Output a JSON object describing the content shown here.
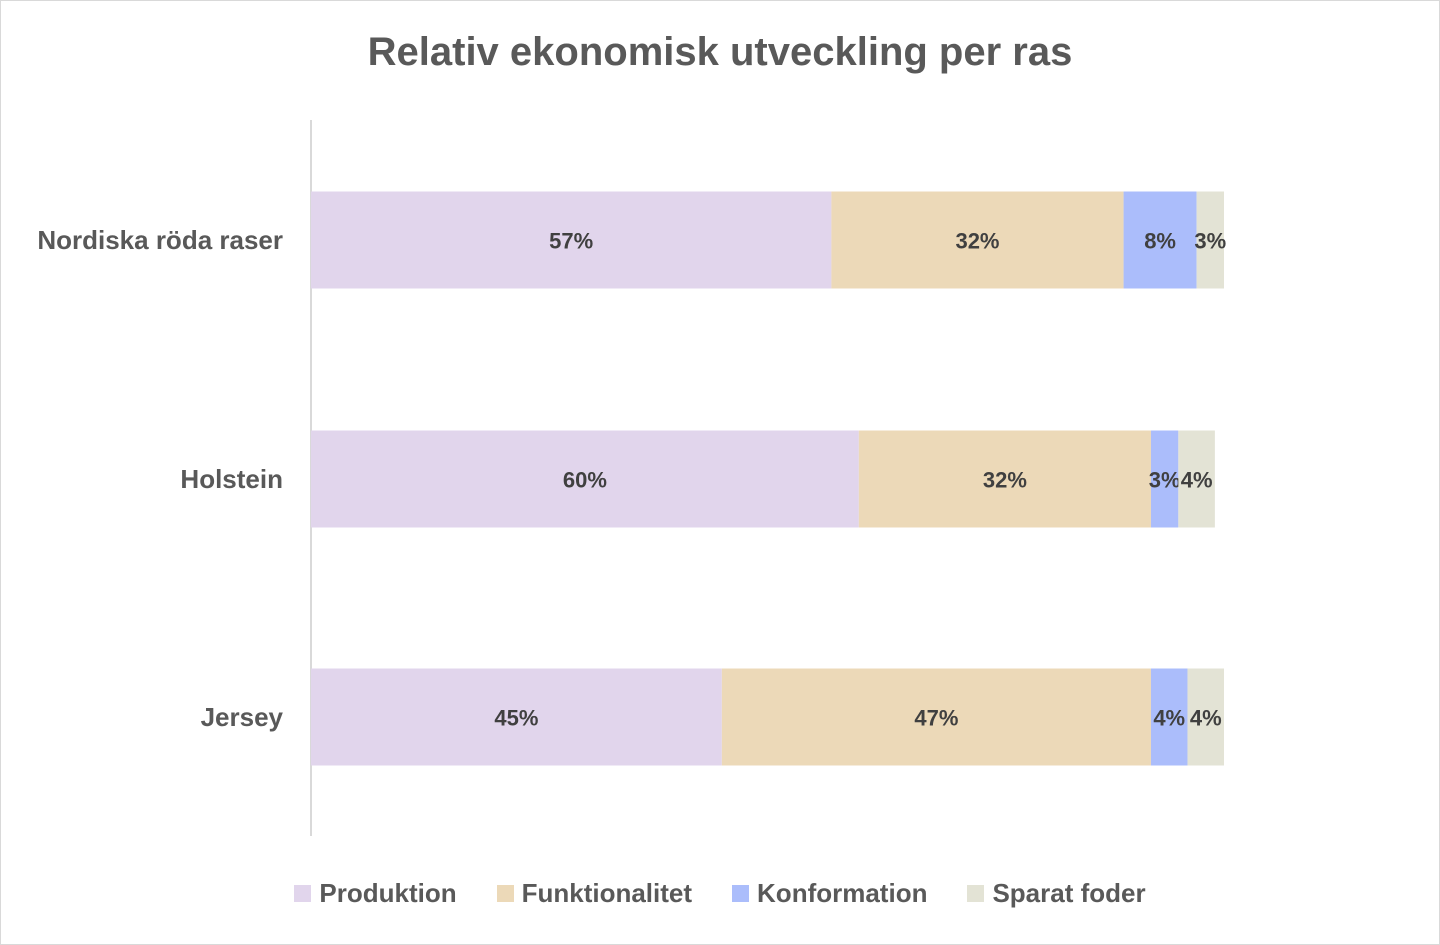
{
  "chart_data": {
    "type": "bar",
    "orientation": "horizontal",
    "stacked": true,
    "title": "Relativ ekonomisk utveckling per ras",
    "categories": [
      "Nordiska röda raser",
      "Holstein",
      "Jersey"
    ],
    "series": [
      {
        "name": "Produktion",
        "color": "#e1d5ec",
        "values": [
          57,
          60,
          45
        ],
        "labels": [
          "57%",
          "60%",
          "45%"
        ]
      },
      {
        "name": "Funktionalitet",
        "color": "#ecd9b8",
        "values": [
          32,
          32,
          47
        ],
        "labels": [
          "32%",
          "32%",
          "47%"
        ]
      },
      {
        "name": "Konformation",
        "color": "#abbdfb",
        "values": [
          8,
          3,
          4
        ],
        "labels": [
          "8%",
          "3%",
          "4%"
        ]
      },
      {
        "name": "Sparat foder",
        "color": "#e3e3d5",
        "values": [
          3,
          4,
          4
        ],
        "labels": [
          "3%",
          "4%",
          "4%"
        ]
      }
    ],
    "xlim": [
      0,
      100
    ],
    "grid": false,
    "legend_position": "bottom"
  }
}
